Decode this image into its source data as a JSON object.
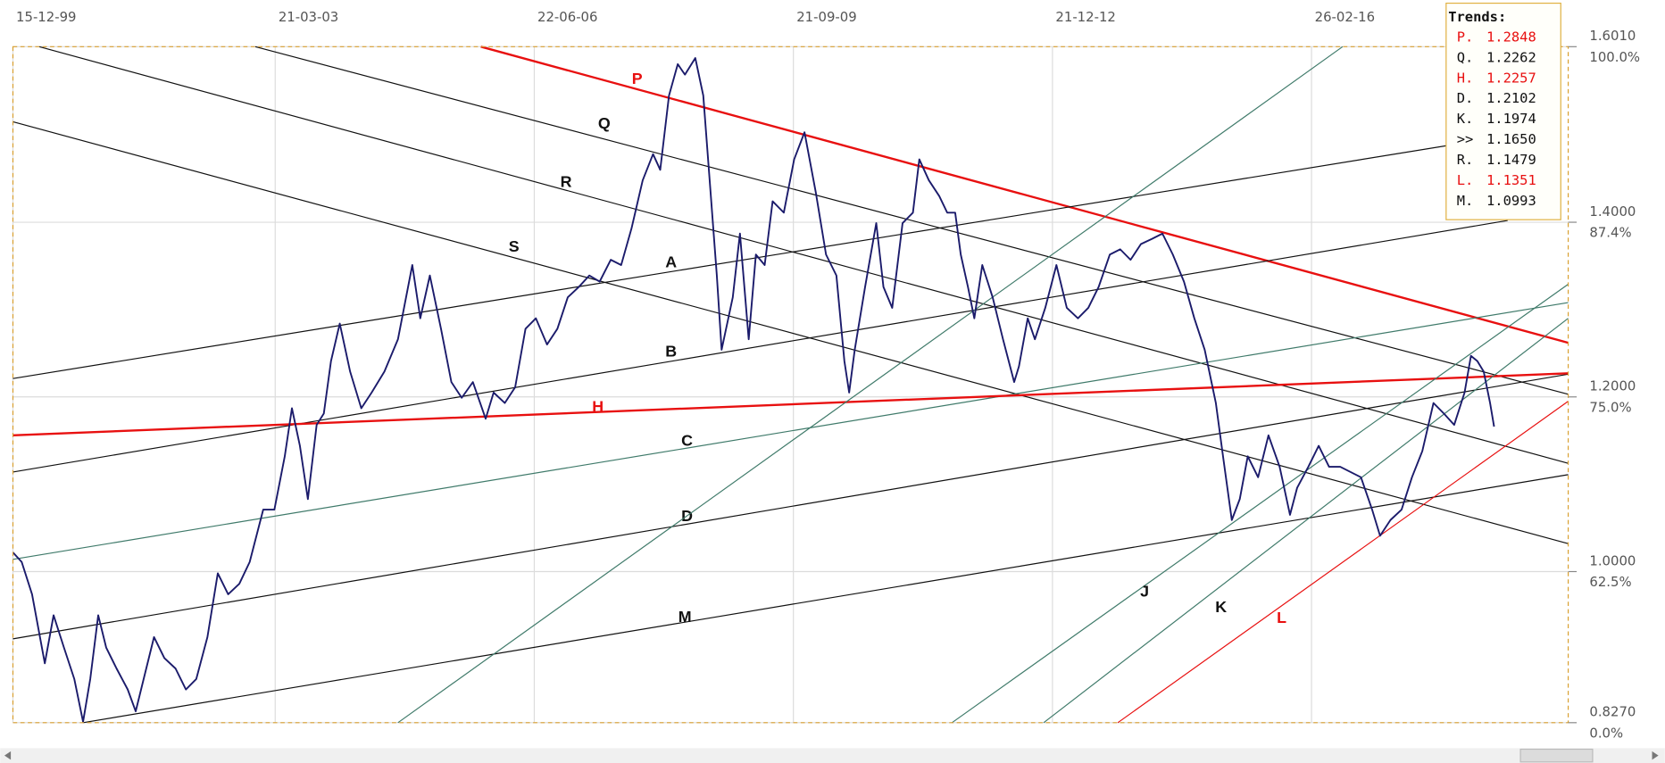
{
  "chart_data": {
    "type": "line",
    "x": [
      1999.95,
      2000.06,
      2000.19,
      2000.35,
      2000.46,
      2000.59,
      2000.72,
      2000.83,
      2000.92,
      2001.02,
      2001.12,
      2001.25,
      2001.39,
      2001.49,
      2001.59,
      2001.72,
      2001.85,
      2001.99,
      2002.12,
      2002.25,
      2002.39,
      2002.52,
      2002.65,
      2002.79,
      2002.92,
      2003.09,
      2003.23,
      2003.36,
      2003.45,
      2003.55,
      2003.65,
      2003.76,
      2003.85,
      2003.94,
      2004.05,
      2004.18,
      2004.32,
      2004.45,
      2004.61,
      2004.78,
      2004.96,
      2005.06,
      2005.18,
      2005.32,
      2005.45,
      2005.58,
      2005.72,
      2005.88,
      2005.98,
      2006.12,
      2006.25,
      2006.38,
      2006.51,
      2006.65,
      2006.78,
      2006.91,
      2007.05,
      2007.18,
      2007.31,
      2007.45,
      2007.58,
      2007.71,
      2007.85,
      2007.98,
      2008.07,
      2008.18,
      2008.29,
      2008.38,
      2008.51,
      2008.61,
      2008.71,
      2008.78,
      2008.84,
      2008.98,
      2009.07,
      2009.18,
      2009.27,
      2009.38,
      2009.48,
      2009.62,
      2009.75,
      2009.88,
      2010.02,
      2010.15,
      2010.28,
      2010.38,
      2010.44,
      2010.51,
      2010.64,
      2010.78,
      2010.87,
      2010.98,
      2011.11,
      2011.24,
      2011.32,
      2011.44,
      2011.57,
      2011.67,
      2011.77,
      2011.84,
      2011.93,
      2012.01,
      2012.11,
      2012.24,
      2012.37,
      2012.51,
      2012.57,
      2012.68,
      2012.77,
      2012.9,
      2013.04,
      2013.17,
      2013.31,
      2013.44,
      2013.57,
      2013.71,
      2013.84,
      2013.97,
      2014.1,
      2014.24,
      2014.37,
      2014.5,
      2014.64,
      2014.77,
      2014.9,
      2015.04,
      2015.13,
      2015.24,
      2015.34,
      2015.44,
      2015.57,
      2015.7,
      2015.84,
      2015.97,
      2016.06,
      2016.2,
      2016.33,
      2016.46,
      2016.6,
      2016.73,
      2016.86,
      2017.0,
      2017.1,
      2017.23,
      2017.37,
      2017.5,
      2017.63,
      2017.77,
      2017.9,
      2018.03,
      2018.16,
      2018.24,
      2018.32,
      2018.4,
      2018.48,
      2018.53
    ],
    "series": [
      {
        "color": "#1b1b6b",
        "values": [
          1.022,
          1.011,
          0.974,
          0.895,
          0.95,
          0.913,
          0.877,
          0.828,
          0.877,
          0.95,
          0.913,
          0.889,
          0.865,
          0.84,
          0.877,
          0.925,
          0.901,
          0.889,
          0.865,
          0.877,
          0.925,
          0.998,
          0.974,
          0.986,
          1.011,
          1.071,
          1.071,
          1.132,
          1.187,
          1.144,
          1.083,
          1.168,
          1.181,
          1.241,
          1.284,
          1.229,
          1.187,
          1.205,
          1.229,
          1.266,
          1.351,
          1.29,
          1.339,
          1.278,
          1.217,
          1.199,
          1.217,
          1.175,
          1.205,
          1.193,
          1.211,
          1.278,
          1.29,
          1.26,
          1.278,
          1.314,
          1.326,
          1.339,
          1.332,
          1.357,
          1.351,
          1.393,
          1.448,
          1.478,
          1.46,
          1.545,
          1.581,
          1.569,
          1.588,
          1.545,
          1.424,
          1.339,
          1.254,
          1.314,
          1.387,
          1.266,
          1.363,
          1.351,
          1.424,
          1.411,
          1.472,
          1.503,
          1.435,
          1.363,
          1.339,
          1.241,
          1.205,
          1.254,
          1.326,
          1.399,
          1.326,
          1.302,
          1.399,
          1.411,
          1.472,
          1.448,
          1.43,
          1.411,
          1.411,
          1.363,
          1.326,
          1.29,
          1.351,
          1.314,
          1.266,
          1.217,
          1.235,
          1.29,
          1.266,
          1.302,
          1.351,
          1.302,
          1.29,
          1.302,
          1.326,
          1.363,
          1.369,
          1.357,
          1.375,
          1.381,
          1.387,
          1.363,
          1.332,
          1.29,
          1.254,
          1.193,
          1.132,
          1.059,
          1.083,
          1.132,
          1.108,
          1.156,
          1.12,
          1.065,
          1.096,
          1.12,
          1.144,
          1.12,
          1.12,
          1.114,
          1.108,
          1.071,
          1.041,
          1.059,
          1.071,
          1.108,
          1.138,
          1.193,
          1.181,
          1.168,
          1.205,
          1.247,
          1.241,
          1.229,
          1.193,
          1.166
        ]
      }
    ],
    "xlim": [
      1999.95,
      2019.46
    ],
    "xticks": [
      {
        "value": 1999.95,
        "label": "15-12-99"
      },
      {
        "value": 2003.24,
        "label": "21-03-03"
      },
      {
        "value": 2006.49,
        "label": "22-06-06"
      },
      {
        "value": 2009.74,
        "label": "21-09-09"
      },
      {
        "value": 2012.99,
        "label": "21-12-12"
      },
      {
        "value": 2016.24,
        "label": "26-02-16"
      }
    ],
    "ylim": [
      0.827,
      1.601
    ],
    "yticks": [
      {
        "value": 1.601,
        "label": "1.6010"
      },
      {
        "value": 1.4,
        "label": "1.4000"
      },
      {
        "value": 1.2,
        "label": "1.2000"
      },
      {
        "value": 1.0,
        "label": "1.0000"
      },
      {
        "value": 0.827,
        "label": "0.8270"
      }
    ],
    "ytick_percents": [
      "100.0%",
      "87.4%",
      "75.0%",
      "62.5%",
      "0.0%"
    ],
    "grid": true,
    "trendlines": [
      {
        "name": "P",
        "color": "#e81010",
        "x": [
          2005.82,
          2019.46
        ],
        "y": [
          1.601,
          1.262
        ]
      },
      {
        "name": "Q",
        "color": "#111111",
        "x": [
          2002.99,
          2019.46
        ],
        "y": [
          1.601,
          1.203
        ]
      },
      {
        "name": "R",
        "color": "#111111",
        "x": [
          2000.28,
          2019.46
        ],
        "y": [
          1.601,
          1.124
        ]
      },
      {
        "name": "S",
        "color": "#111111",
        "x": [
          1999.95,
          2019.46
        ],
        "y": [
          1.515,
          1.032
        ]
      },
      {
        "name": "A",
        "color": "#111111",
        "x": [
          1999.95,
          2018.7
        ],
        "y": [
          1.221,
          1.499
        ]
      },
      {
        "name": "B",
        "color": "#111111",
        "x": [
          1999.95,
          2018.7
        ],
        "y": [
          1.114,
          1.402
        ]
      },
      {
        "name": "C",
        "color": "#3f7a6a",
        "x": [
          1999.95,
          2019.46
        ],
        "y": [
          1.014,
          1.308
        ]
      },
      {
        "name": "D",
        "color": "#111111",
        "x": [
          1999.95,
          2019.46
        ],
        "y": [
          0.923,
          1.226
        ]
      },
      {
        "name": "M",
        "color": "#111111",
        "x": [
          2000.83,
          2019.46
        ],
        "y": [
          0.827,
          1.111
        ]
      },
      {
        "name": "H",
        "color": "#e81010",
        "x": [
          1999.95,
          2019.46
        ],
        "y": [
          1.156,
          1.227
        ]
      },
      {
        "color": "#3f7a6a",
        "x": [
          2004.78,
          2016.63
        ],
        "y": [
          0.827,
          1.601
        ]
      },
      {
        "name": "J",
        "color": "#3f7a6a",
        "x": [
          2011.73,
          2019.46
        ],
        "y": [
          0.827,
          1.329
        ]
      },
      {
        "name": "K",
        "color": "#3f7a6a",
        "x": [
          2012.88,
          2019.46
        ],
        "y": [
          0.827,
          1.29
        ]
      },
      {
        "name": "L",
        "color": "#e81010",
        "x": [
          2013.81,
          2019.46
        ],
        "y": [
          0.827,
          1.195
        ]
      }
    ],
    "trends_box": {
      "title": "Trends:",
      "entries": [
        {
          "label": "P.",
          "value": "1.2848",
          "color": "#e81010"
        },
        {
          "label": "Q.",
          "value": "1.2262",
          "color": "#111111"
        },
        {
          "label": "H.",
          "value": "1.2257",
          "color": "#e81010"
        },
        {
          "label": "D.",
          "value": "1.2102",
          "color": "#111111"
        },
        {
          "label": "K.",
          "value": "1.1974",
          "color": "#111111"
        },
        {
          "label": ">>",
          "value": "1.1650",
          "color": "#111111"
        },
        {
          "label": "R.",
          "value": "1.1479",
          "color": "#111111"
        },
        {
          "label": "L.",
          "value": "1.1351",
          "color": "#e81010"
        },
        {
          "label": "M.",
          "value": "1.0993",
          "color": "#111111"
        }
      ]
    }
  }
}
